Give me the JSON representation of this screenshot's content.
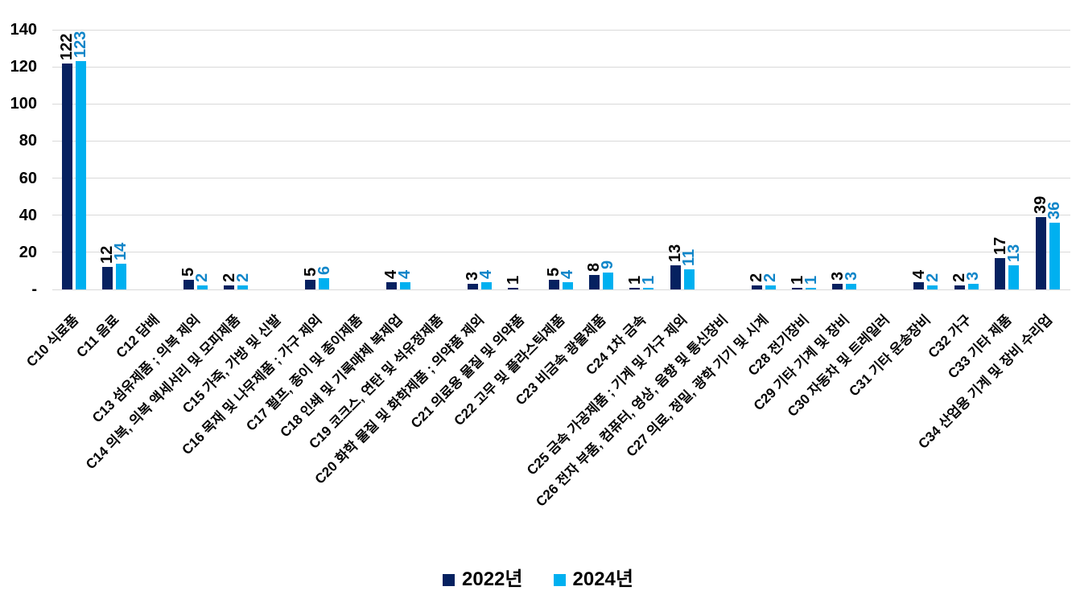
{
  "chart_data": {
    "type": "bar",
    "title": "",
    "grid": true,
    "legend_position": "bottom",
    "y_axis": {
      "min": 0,
      "max": 140,
      "step": 20,
      "tick_labels_top_to_bottom": [
        "140",
        "120",
        "100",
        "80",
        "60",
        "40",
        "20",
        "-"
      ]
    },
    "categories": [
      "C10 식료품",
      "C11 음료",
      "C12 담배",
      "C13 섬유제품 ; 의복 제외",
      "C14 의복, 의복 액세서리 및 모피제품",
      "C15 가죽, 가방 및 신발",
      "C16 목재 및 나무제품 ; 가구 제외",
      "C17 펄프, 종이 및 종이제품",
      "C18 인쇄 및 기록매체 복제업",
      "C19 코크스, 연탄 및 석유정제품",
      "C20 화학 물질 및 화학제품 ; 의약품 제외",
      "C21 의료용 물질 및 의약품",
      "C22 고무 및 플라스틱제품",
      "C23 비금속 광물제품",
      "C24 1차 금속",
      "C25 금속 가공제품 ; 기계 및 가구 제외",
      "C26 전자 부품, 컴퓨터, 영상, 음향 및 통신장비",
      "C27 의료, 정밀, 광학 기기 및 시계",
      "C28 전기장비",
      "C29 기타 기계 및 장비",
      "C30 자동차 및 트레일러",
      "C31 기타 운송장비",
      "C32 가구",
      "C33 기타 제품",
      "C34 산업용 기계 및 장비 수리업"
    ],
    "series": [
      {
        "name": "2022년",
        "color": "#062160",
        "label_color": "#000000",
        "values": [
          122,
          12,
          0,
          5,
          2,
          0,
          5,
          0,
          4,
          0,
          3,
          1,
          5,
          8,
          1,
          13,
          0,
          2,
          1,
          3,
          0,
          4,
          2,
          17,
          39
        ]
      },
      {
        "name": "2024년",
        "color": "#00B0F0",
        "label_color": "#1086C9",
        "values": [
          123,
          14,
          0,
          2,
          2,
          0,
          6,
          0,
          4,
          0,
          4,
          0,
          4,
          9,
          1,
          11,
          0,
          2,
          1,
          3,
          0,
          2,
          3,
          13,
          36
        ]
      }
    ],
    "data_label_rule": "values of 0 show no bar and no label"
  },
  "colors": {
    "background": "#FFFFFF",
    "gridline": "#D9D9D9",
    "axis_text": "#000000"
  }
}
